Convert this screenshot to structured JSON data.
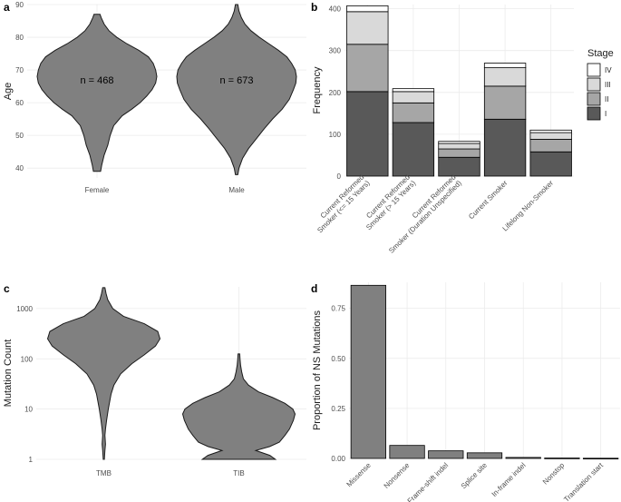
{
  "panels": {
    "a": "a",
    "b": "b",
    "c": "c",
    "d": "d"
  },
  "chart_data": [
    {
      "panel": "a",
      "type": "violin",
      "ylabel": "Age",
      "ylim": [
        37,
        90
      ],
      "yticks": [
        40,
        50,
        60,
        70,
        80,
        90
      ],
      "categories": [
        "Female",
        "Male"
      ],
      "annotations": [
        "n =  468",
        "n =  673"
      ],
      "annotation_y": 67,
      "color": "#808080",
      "violins": [
        {
          "name": "Female",
          "range": [
            39,
            87
          ],
          "profile": [
            [
              39,
              0.06
            ],
            [
              41,
              0.08
            ],
            [
              44,
              0.12
            ],
            [
              47,
              0.18
            ],
            [
              50,
              0.22
            ],
            [
              53,
              0.28
            ],
            [
              56,
              0.42
            ],
            [
              58,
              0.58
            ],
            [
              60,
              0.72
            ],
            [
              62,
              0.83
            ],
            [
              64,
              0.92
            ],
            [
              66,
              0.98
            ],
            [
              68,
              1.0
            ],
            [
              70,
              0.98
            ],
            [
              72,
              0.94
            ],
            [
              74,
              0.86
            ],
            [
              76,
              0.7
            ],
            [
              78,
              0.5
            ],
            [
              80,
              0.33
            ],
            [
              82,
              0.2
            ],
            [
              84,
              0.12
            ],
            [
              86,
              0.07
            ],
            [
              87,
              0.05
            ]
          ]
        },
        {
          "name": "Male",
          "range": [
            38,
            90
          ],
          "profile": [
            [
              38,
              0.02
            ],
            [
              40,
              0.04
            ],
            [
              43,
              0.1
            ],
            [
              46,
              0.2
            ],
            [
              49,
              0.33
            ],
            [
              52,
              0.46
            ],
            [
              55,
              0.6
            ],
            [
              58,
              0.76
            ],
            [
              61,
              0.88
            ],
            [
              64,
              0.95
            ],
            [
              66,
              0.99
            ],
            [
              68,
              1.0
            ],
            [
              70,
              0.98
            ],
            [
              72,
              0.92
            ],
            [
              74,
              0.84
            ],
            [
              76,
              0.7
            ],
            [
              78,
              0.54
            ],
            [
              80,
              0.38
            ],
            [
              82,
              0.24
            ],
            [
              84,
              0.14
            ],
            [
              86,
              0.08
            ],
            [
              88,
              0.04
            ],
            [
              90,
              0.02
            ]
          ]
        }
      ]
    },
    {
      "panel": "b",
      "type": "bar",
      "stacked": true,
      "ylabel": "Frequency",
      "ylim": [
        0,
        410
      ],
      "yticks": [
        0,
        100,
        200,
        300,
        400
      ],
      "categories": [
        [
          "Current Reformed",
          "Smoker (<= 15 Years)"
        ],
        [
          "Current Reformed",
          "Smoker (> 15 Years)"
        ],
        [
          "Current Reformed",
          "Smoker (Duration Unspecified)"
        ],
        [
          "Current Smoker"
        ],
        [
          "Lifelong Non-Smoker"
        ]
      ],
      "legend": {
        "title": "Stage",
        "position": "right"
      },
      "series": [
        {
          "name": "I",
          "color": "#595959",
          "values": [
            202,
            128,
            45,
            136,
            58
          ]
        },
        {
          "name": "II",
          "color": "#a6a6a6",
          "values": [
            113,
            47,
            20,
            79,
            30
          ]
        },
        {
          "name": "III",
          "color": "#d9d9d9",
          "values": [
            78,
            27,
            13,
            44,
            16
          ]
        },
        {
          "name": "IV",
          "color": "#ffffff",
          "values": [
            14,
            7,
            5,
            11,
            6
          ]
        }
      ]
    },
    {
      "panel": "c",
      "type": "violin",
      "ylabel": "Mutation Count",
      "yscale": "log",
      "ylim": [
        1,
        2700
      ],
      "yticks": [
        1,
        10,
        100,
        1000
      ],
      "categories": [
        "TMB",
        "TIB"
      ],
      "color": "#808080",
      "violins": [
        {
          "name": "TMB",
          "range": [
            1,
            2600
          ],
          "profile": [
            [
              1,
              0.01
            ],
            [
              1.5,
              0.02
            ],
            [
              2,
              0.03
            ],
            [
              3,
              0.02
            ],
            [
              4,
              0.03
            ],
            [
              6,
              0.05
            ],
            [
              10,
              0.08
            ],
            [
              20,
              0.13
            ],
            [
              30,
              0.18
            ],
            [
              50,
              0.3
            ],
            [
              80,
              0.5
            ],
            [
              120,
              0.72
            ],
            [
              180,
              0.92
            ],
            [
              250,
              1.0
            ],
            [
              350,
              0.96
            ],
            [
              500,
              0.72
            ],
            [
              700,
              0.35
            ],
            [
              1000,
              0.16
            ],
            [
              1500,
              0.07
            ],
            [
              2000,
              0.04
            ],
            [
              2600,
              0.02
            ]
          ]
        },
        {
          "name": "TIB",
          "range": [
            1,
            125
          ],
          "profile": [
            [
              1,
              0.65
            ],
            [
              1.2,
              0.55
            ],
            [
              1.5,
              0.3
            ],
            [
              1.8,
              0.55
            ],
            [
              2.2,
              0.72
            ],
            [
              3,
              0.82
            ],
            [
              4,
              0.9
            ],
            [
              6,
              0.97
            ],
            [
              8,
              1.0
            ],
            [
              10,
              0.96
            ],
            [
              13,
              0.82
            ],
            [
              17,
              0.6
            ],
            [
              22,
              0.35
            ],
            [
              30,
              0.17
            ],
            [
              40,
              0.08
            ],
            [
              55,
              0.05
            ],
            [
              75,
              0.03
            ],
            [
              100,
              0.02
            ],
            [
              125,
              0.015
            ]
          ]
        }
      ]
    },
    {
      "panel": "d",
      "type": "bar",
      "ylabel": "Proportion of NS Mutations",
      "ylim": [
        0,
        0.88
      ],
      "yticks": [
        "0.00",
        "0.25",
        "0.50",
        "0.75"
      ],
      "categories": [
        "Missense",
        "Nonsense",
        "Frame-shift indel",
        "Splice site",
        "In-frame indel",
        "Nonstop",
        "Translation start"
      ],
      "values": [
        0.865,
        0.065,
        0.038,
        0.028,
        0.005,
        0.002,
        0.001
      ],
      "color": "#808080"
    }
  ]
}
